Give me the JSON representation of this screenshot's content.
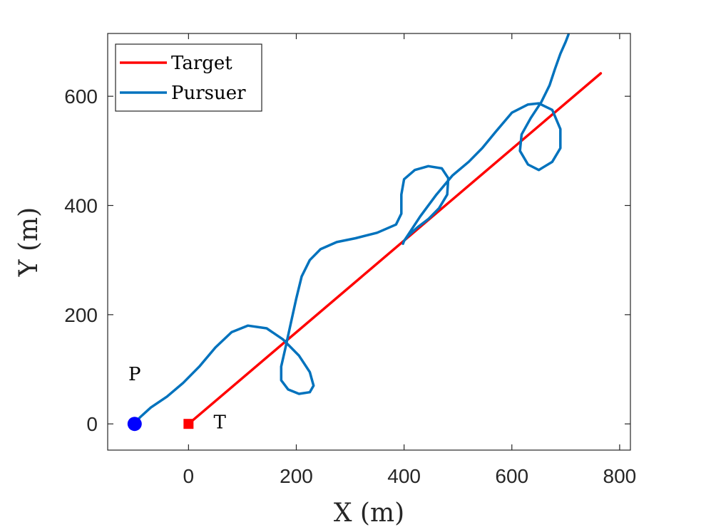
{
  "chart_data": {
    "type": "line",
    "xlabel": "X (m)",
    "ylabel": "Y (m)",
    "xlim": [
      -150,
      820
    ],
    "ylim": [
      -48,
      715
    ],
    "xticks": [
      0,
      200,
      400,
      600,
      800
    ],
    "yticks": [
      0,
      200,
      400,
      600
    ],
    "grid": false,
    "legend_position": "top-left",
    "series": [
      {
        "name": "Target",
        "color": "#ff0000",
        "x": [
          0,
          765
        ],
        "y": [
          0,
          642
        ]
      },
      {
        "name": "Pursuer",
        "color": "#0072bd",
        "x": [
          -100,
          -90,
          -70,
          -40,
          -10,
          20,
          50,
          80,
          110,
          145,
          175,
          205,
          225,
          232,
          225,
          205,
          185,
          172,
          172,
          180,
          190,
          200,
          210,
          225,
          245,
          275,
          310,
          350,
          385,
          395,
          395,
          400,
          420,
          445,
          470,
          482,
          480,
          465,
          445,
          425,
          408,
          400,
          398,
          400,
          410,
          430,
          460,
          490,
          520,
          545,
          570,
          600,
          630,
          650,
          675,
          690,
          690,
          675,
          650,
          630,
          615,
          618,
          635,
          655,
          670,
          680,
          690,
          700,
          705
        ],
        "y": [
          0,
          12,
          30,
          50,
          75,
          105,
          140,
          168,
          180,
          175,
          155,
          125,
          95,
          70,
          58,
          55,
          63,
          80,
          105,
          140,
          185,
          230,
          270,
          300,
          320,
          333,
          340,
          350,
          365,
          385,
          420,
          448,
          465,
          472,
          468,
          450,
          420,
          395,
          375,
          360,
          345,
          335,
          330,
          335,
          350,
          380,
          420,
          455,
          480,
          505,
          535,
          570,
          585,
          587,
          575,
          540,
          505,
          480,
          465,
          475,
          500,
          530,
          560,
          590,
          620,
          650,
          678,
          700,
          713
        ]
      }
    ],
    "annotations": [
      {
        "text": "P",
        "x": -100,
        "y": 80
      },
      {
        "text": "T",
        "x": 58,
        "y": -8
      }
    ],
    "markers": [
      {
        "name": "pursuer-start",
        "shape": "circle",
        "color": "#0000ff",
        "x": -100,
        "y": 0
      },
      {
        "name": "target-start",
        "shape": "square",
        "color": "#ff0000",
        "x": 0,
        "y": 0
      }
    ]
  }
}
